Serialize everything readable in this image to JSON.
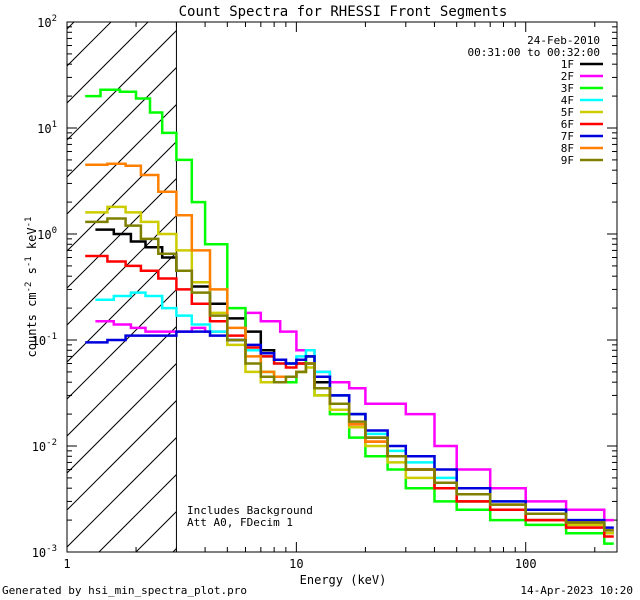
{
  "chart_data": {
    "type": "line",
    "title": "Count Spectra for RHESSI Front Segments",
    "xlabel": "Energy (keV)",
    "ylabel": "counts cm",
    "ylabel_sup1": "-2",
    "ylabel_mid": " s",
    "ylabel_sup2": "-1",
    "ylabel_end": " keV",
    "ylabel_sup3": "-1",
    "x_scale": "log",
    "y_scale": "log",
    "xlim": [
      1,
      250
    ],
    "ylim": [
      0.001,
      100
    ],
    "x_ticks": [
      {
        "value": 1,
        "label": "1"
      },
      {
        "value": 10,
        "label": "10"
      },
      {
        "value": 100,
        "label": "100"
      }
    ],
    "y_ticks": [
      {
        "value": 0.001,
        "base": "10",
        "exp": "-3"
      },
      {
        "value": 0.01,
        "base": "10",
        "exp": "-2"
      },
      {
        "value": 0.1,
        "base": "10",
        "exp": "-1"
      },
      {
        "value": 1,
        "base": "10",
        "exp": "0"
      },
      {
        "value": 10,
        "base": "10",
        "exp": "1"
      },
      {
        "value": 100,
        "base": "10",
        "exp": "2"
      }
    ],
    "shaded_region": {
      "x_from": 1,
      "x_to": 3,
      "pattern": "diagonal hatch"
    },
    "legend_header": [
      "24-Feb-2010",
      "00:31:00 to 00:32:00"
    ],
    "annotations": [
      "Includes Background",
      "Att A0, FDecim 1"
    ],
    "series": [
      {
        "name": "1F",
        "color": "#000000",
        "values": [
          [
            1.33,
            1.1
          ],
          [
            1.6,
            1.0
          ],
          [
            1.9,
            0.85
          ],
          [
            2.2,
            0.75
          ],
          [
            2.6,
            0.6
          ],
          [
            3.0,
            0.45
          ],
          [
            3.5,
            0.32
          ],
          [
            4.2,
            0.22
          ],
          [
            5.0,
            0.16
          ],
          [
            6.0,
            0.12
          ],
          [
            7.0,
            0.08
          ],
          [
            8.0,
            0.065
          ],
          [
            9.0,
            0.06
          ],
          [
            10,
            0.06
          ],
          [
            11,
            0.07
          ],
          [
            12,
            0.04
          ],
          [
            14,
            0.03
          ],
          [
            17,
            0.02
          ],
          [
            20,
            0.012
          ],
          [
            25,
            0.008
          ],
          [
            30,
            0.006
          ],
          [
            40,
            0.004
          ],
          [
            50,
            0.003
          ],
          [
            70,
            0.0025
          ],
          [
            100,
            0.002
          ],
          [
            150,
            0.0018
          ],
          [
            220,
            0.0015
          ]
        ]
      },
      {
        "name": "2F",
        "color": "#ff00ff",
        "values": [
          [
            1.33,
            0.15
          ],
          [
            1.6,
            0.14
          ],
          [
            1.9,
            0.13
          ],
          [
            2.2,
            0.12
          ],
          [
            2.6,
            0.12
          ],
          [
            3.0,
            0.12
          ],
          [
            3.5,
            0.13
          ],
          [
            4.0,
            0.12
          ],
          [
            5.0,
            0.1
          ],
          [
            6.0,
            0.18
          ],
          [
            7.0,
            0.15
          ],
          [
            8.5,
            0.12
          ],
          [
            10,
            0.08
          ],
          [
            12,
            0.05
          ],
          [
            14,
            0.04
          ],
          [
            17,
            0.035
          ],
          [
            20,
            0.025
          ],
          [
            25,
            0.025
          ],
          [
            30,
            0.02
          ],
          [
            40,
            0.01
          ],
          [
            50,
            0.006
          ],
          [
            70,
            0.004
          ],
          [
            100,
            0.003
          ],
          [
            150,
            0.0025
          ],
          [
            220,
            0.002
          ]
        ]
      },
      {
        "name": "3F",
        "color": "#00ff00",
        "values": [
          [
            1.2,
            20
          ],
          [
            1.4,
            23
          ],
          [
            1.7,
            22
          ],
          [
            2.0,
            19
          ],
          [
            2.3,
            14
          ],
          [
            2.6,
            9
          ],
          [
            3.0,
            5
          ],
          [
            3.5,
            2
          ],
          [
            4.0,
            0.8
          ],
          [
            5.0,
            0.2
          ],
          [
            6.0,
            0.08
          ],
          [
            7.0,
            0.05
          ],
          [
            8.0,
            0.04
          ],
          [
            9.0,
            0.04
          ],
          [
            10,
            0.05
          ],
          [
            11,
            0.07
          ],
          [
            12,
            0.03
          ],
          [
            14,
            0.02
          ],
          [
            17,
            0.012
          ],
          [
            20,
            0.008
          ],
          [
            25,
            0.006
          ],
          [
            30,
            0.004
          ],
          [
            40,
            0.003
          ],
          [
            50,
            0.0025
          ],
          [
            70,
            0.002
          ],
          [
            100,
            0.0018
          ],
          [
            150,
            0.0015
          ],
          [
            220,
            0.0012
          ]
        ]
      },
      {
        "name": "4F",
        "color": "#00ffff",
        "values": [
          [
            1.33,
            0.24
          ],
          [
            1.6,
            0.26
          ],
          [
            1.9,
            0.28
          ],
          [
            2.2,
            0.26
          ],
          [
            2.6,
            0.2
          ],
          [
            3.0,
            0.17
          ],
          [
            3.5,
            0.14
          ],
          [
            4.2,
            0.12
          ],
          [
            5.0,
            0.1
          ],
          [
            6.0,
            0.08
          ],
          [
            7.0,
            0.07
          ],
          [
            8.0,
            0.06
          ],
          [
            9.0,
            0.06
          ],
          [
            10,
            0.07
          ],
          [
            11,
            0.08
          ],
          [
            12,
            0.05
          ],
          [
            14,
            0.03
          ],
          [
            17,
            0.02
          ],
          [
            20,
            0.013
          ],
          [
            25,
            0.009
          ],
          [
            30,
            0.007
          ],
          [
            40,
            0.005
          ],
          [
            50,
            0.004
          ],
          [
            70,
            0.003
          ],
          [
            100,
            0.0025
          ],
          [
            150,
            0.002
          ],
          [
            220,
            0.0015
          ]
        ]
      },
      {
        "name": "5F",
        "color": "#cccc00",
        "values": [
          [
            1.2,
            1.6
          ],
          [
            1.5,
            1.8
          ],
          [
            1.8,
            1.6
          ],
          [
            2.1,
            1.3
          ],
          [
            2.5,
            1.0
          ],
          [
            3.0,
            0.7
          ],
          [
            3.5,
            0.35
          ],
          [
            4.2,
            0.18
          ],
          [
            5.0,
            0.09
          ],
          [
            6.0,
            0.05
          ],
          [
            7.0,
            0.04
          ],
          [
            8.0,
            0.04
          ],
          [
            9.0,
            0.045
          ],
          [
            10,
            0.05
          ],
          [
            11,
            0.055
          ],
          [
            12,
            0.03
          ],
          [
            14,
            0.022
          ],
          [
            17,
            0.015
          ],
          [
            20,
            0.01
          ],
          [
            25,
            0.007
          ],
          [
            30,
            0.005
          ],
          [
            40,
            0.004
          ],
          [
            50,
            0.003
          ],
          [
            70,
            0.0025
          ],
          [
            100,
            0.002
          ],
          [
            150,
            0.0018
          ],
          [
            220,
            0.0015
          ]
        ]
      },
      {
        "name": "6F",
        "color": "#ff0000",
        "values": [
          [
            1.2,
            0.62
          ],
          [
            1.5,
            0.55
          ],
          [
            1.8,
            0.5
          ],
          [
            2.1,
            0.45
          ],
          [
            2.5,
            0.38
          ],
          [
            3.0,
            0.3
          ],
          [
            3.5,
            0.22
          ],
          [
            4.2,
            0.15
          ],
          [
            5.0,
            0.11
          ],
          [
            6.0,
            0.085
          ],
          [
            7.0,
            0.07
          ],
          [
            8.0,
            0.06
          ],
          [
            9.0,
            0.055
          ],
          [
            10,
            0.06
          ],
          [
            11,
            0.06
          ],
          [
            12,
            0.035
          ],
          [
            14,
            0.025
          ],
          [
            17,
            0.016
          ],
          [
            20,
            0.011
          ],
          [
            25,
            0.008
          ],
          [
            30,
            0.006
          ],
          [
            40,
            0.004
          ],
          [
            50,
            0.003
          ],
          [
            70,
            0.0025
          ],
          [
            100,
            0.002
          ],
          [
            150,
            0.0017
          ],
          [
            220,
            0.0014
          ]
        ]
      },
      {
        "name": "7F",
        "color": "#0000dd",
        "values": [
          [
            1.2,
            0.095
          ],
          [
            1.5,
            0.1
          ],
          [
            1.8,
            0.11
          ],
          [
            2.1,
            0.11
          ],
          [
            2.5,
            0.11
          ],
          [
            3.0,
            0.12
          ],
          [
            3.5,
            0.12
          ],
          [
            4.2,
            0.11
          ],
          [
            5.0,
            0.1
          ],
          [
            6.0,
            0.09
          ],
          [
            7.0,
            0.075
          ],
          [
            8.0,
            0.065
          ],
          [
            9.0,
            0.06
          ],
          [
            10,
            0.065
          ],
          [
            11,
            0.07
          ],
          [
            12,
            0.045
          ],
          [
            14,
            0.03
          ],
          [
            17,
            0.02
          ],
          [
            20,
            0.014
          ],
          [
            25,
            0.01
          ],
          [
            30,
            0.008
          ],
          [
            40,
            0.006
          ],
          [
            50,
            0.004
          ],
          [
            70,
            0.003
          ],
          [
            100,
            0.0025
          ],
          [
            150,
            0.002
          ],
          [
            220,
            0.0017
          ]
        ]
      },
      {
        "name": "8F",
        "color": "#ff8000",
        "values": [
          [
            1.2,
            4.5
          ],
          [
            1.5,
            4.6
          ],
          [
            1.8,
            4.4
          ],
          [
            2.1,
            3.6
          ],
          [
            2.5,
            2.5
          ],
          [
            3.0,
            1.5
          ],
          [
            3.5,
            0.7
          ],
          [
            4.2,
            0.3
          ],
          [
            5.0,
            0.13
          ],
          [
            6.0,
            0.07
          ],
          [
            7.0,
            0.05
          ],
          [
            8.0,
            0.045
          ],
          [
            9.0,
            0.045
          ],
          [
            10,
            0.05
          ],
          [
            11,
            0.06
          ],
          [
            12,
            0.035
          ],
          [
            14,
            0.025
          ],
          [
            17,
            0.016
          ],
          [
            20,
            0.011
          ],
          [
            25,
            0.008
          ],
          [
            30,
            0.006
          ],
          [
            40,
            0.0045
          ],
          [
            50,
            0.0035
          ],
          [
            70,
            0.0028
          ],
          [
            100,
            0.0023
          ],
          [
            150,
            0.0019
          ],
          [
            220,
            0.0016
          ]
        ]
      },
      {
        "name": "9F",
        "color": "#808000",
        "values": [
          [
            1.2,
            1.3
          ],
          [
            1.5,
            1.4
          ],
          [
            1.8,
            1.2
          ],
          [
            2.1,
            0.9
          ],
          [
            2.5,
            0.65
          ],
          [
            3.0,
            0.45
          ],
          [
            3.5,
            0.28
          ],
          [
            4.2,
            0.17
          ],
          [
            5.0,
            0.1
          ],
          [
            6.0,
            0.06
          ],
          [
            7.0,
            0.045
          ],
          [
            8.0,
            0.04
          ],
          [
            9.0,
            0.045
          ],
          [
            10,
            0.05
          ],
          [
            11,
            0.06
          ],
          [
            12,
            0.035
          ],
          [
            14,
            0.025
          ],
          [
            17,
            0.017
          ],
          [
            20,
            0.012
          ],
          [
            25,
            0.008
          ],
          [
            30,
            0.006
          ],
          [
            40,
            0.0045
          ],
          [
            50,
            0.0035
          ],
          [
            70,
            0.0028
          ],
          [
            100,
            0.0023
          ],
          [
            150,
            0.0019
          ],
          [
            220,
            0.0016
          ]
        ]
      }
    ]
  },
  "footer": {
    "left": "Generated by hsi_min_spectra_plot.pro",
    "right": "14-Apr-2023 10:20"
  }
}
